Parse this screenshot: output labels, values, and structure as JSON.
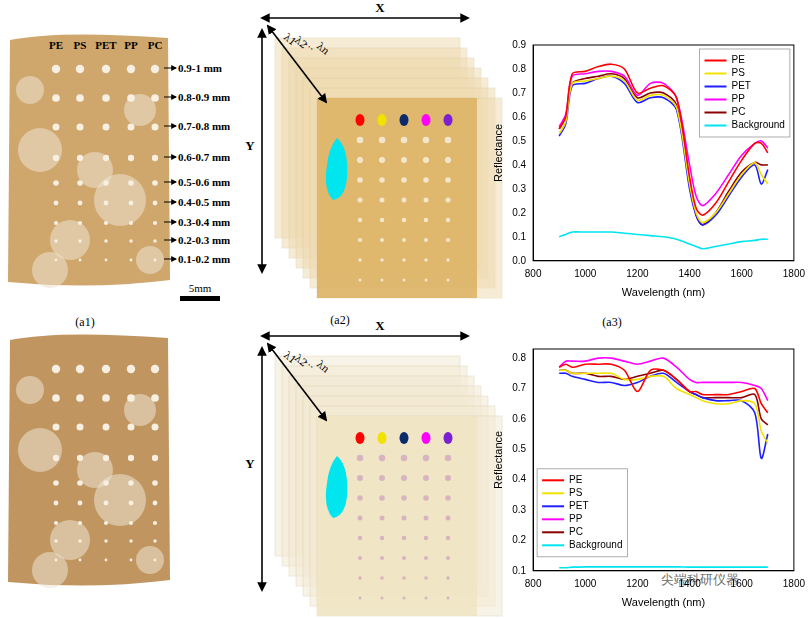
{
  "figure": {
    "column_labels": [
      "PE",
      "PS",
      "PET",
      "PP",
      "PC"
    ],
    "size_labels": [
      "0.9-1 mm",
      "0.8-0.9 mm",
      "0.7-0.8 mm",
      "0.6-0.7 mm",
      "0.5-0.6 mm",
      "0.4-0.5 mm",
      "0.3-0.4 mm",
      "0.2-0.3 mm",
      "0.1-0.2 mm"
    ],
    "scale_bar": "5mm",
    "panel_labels": [
      "(a1)",
      "(a2)",
      "(a3)"
    ],
    "axis_letters": [
      "X",
      "Y"
    ],
    "band_labels": [
      "λ1",
      "λ2",
      "…",
      "λn"
    ],
    "watermark": "尖端科研仪器"
  },
  "chart_data": [
    {
      "type": "line",
      "x_label": "Wavelength (nm)",
      "y_label": "Reflectance",
      "x": [
        900,
        925,
        950,
        1000,
        1050,
        1100,
        1150,
        1200,
        1250,
        1300,
        1350,
        1400,
        1425,
        1450,
        1500,
        1550,
        1600,
        1650,
        1675,
        1700
      ],
      "series": [
        {
          "name": "PE",
          "color": "#ff0000",
          "values": [
            0.55,
            0.6,
            0.78,
            0.79,
            0.81,
            0.82,
            0.8,
            0.7,
            0.72,
            0.73,
            0.68,
            0.35,
            0.22,
            0.19,
            0.24,
            0.33,
            0.42,
            0.49,
            0.49,
            0.45
          ]
        },
        {
          "name": "PS",
          "color": "#f2e200",
          "values": [
            0.53,
            0.58,
            0.74,
            0.75,
            0.76,
            0.77,
            0.75,
            0.67,
            0.69,
            0.69,
            0.64,
            0.32,
            0.2,
            0.16,
            0.2,
            0.28,
            0.36,
            0.41,
            0.36,
            0.32
          ]
        },
        {
          "name": "PET",
          "color": "#1f1fff",
          "values": [
            0.52,
            0.57,
            0.73,
            0.74,
            0.76,
            0.77,
            0.74,
            0.66,
            0.68,
            0.68,
            0.63,
            0.3,
            0.19,
            0.15,
            0.19,
            0.27,
            0.35,
            0.4,
            0.32,
            0.38
          ]
        },
        {
          "name": "PP",
          "color": "#ff00ff",
          "values": [
            0.56,
            0.61,
            0.77,
            0.78,
            0.79,
            0.79,
            0.77,
            0.69,
            0.74,
            0.74,
            0.68,
            0.4,
            0.27,
            0.23,
            0.28,
            0.36,
            0.44,
            0.49,
            0.5,
            0.47
          ]
        },
        {
          "name": "PC",
          "color": "#8b0000",
          "values": [
            0.55,
            0.6,
            0.74,
            0.76,
            0.77,
            0.78,
            0.76,
            0.68,
            0.7,
            0.7,
            0.65,
            0.33,
            0.19,
            0.15,
            0.2,
            0.29,
            0.37,
            0.41,
            0.4,
            0.4
          ]
        },
        {
          "name": "Background",
          "color": "#00e5ee",
          "values": [
            0.1,
            0.11,
            0.12,
            0.12,
            0.12,
            0.12,
            0.115,
            0.11,
            0.105,
            0.1,
            0.09,
            0.07,
            0.06,
            0.05,
            0.06,
            0.07,
            0.08,
            0.085,
            0.09,
            0.09
          ]
        }
      ],
      "xlim": [
        800,
        1800
      ],
      "xticks": [
        800,
        1000,
        1200,
        1400,
        1600,
        1800
      ],
      "ylim": [
        0,
        0.9
      ],
      "yticks": [
        {
          "value": 0,
          "label": "0.0"
        },
        0.1,
        0.2,
        0.3,
        0.4,
        0.5,
        0.6,
        0.7,
        0.8,
        0.9
      ],
      "grid": false,
      "legend": "upper right"
    },
    {
      "type": "line",
      "x_label": "Wavelength (nm)",
      "y_label": "Reflectance",
      "x": [
        900,
        925,
        950,
        1000,
        1050,
        1100,
        1150,
        1200,
        1250,
        1300,
        1350,
        1400,
        1425,
        1450,
        1500,
        1550,
        1600,
        1650,
        1675,
        1700
      ],
      "series": [
        {
          "name": "PE",
          "color": "#ff0000",
          "values": [
            0.77,
            0.78,
            0.77,
            0.78,
            0.78,
            0.78,
            0.76,
            0.69,
            0.76,
            0.76,
            0.73,
            0.69,
            0.69,
            0.68,
            0.68,
            0.68,
            0.69,
            0.7,
            0.65,
            0.62
          ]
        },
        {
          "name": "PS",
          "color": "#f2e200",
          "values": [
            0.76,
            0.76,
            0.75,
            0.75,
            0.75,
            0.75,
            0.73,
            0.73,
            0.74,
            0.74,
            0.7,
            0.68,
            0.67,
            0.66,
            0.65,
            0.65,
            0.66,
            0.65,
            0.56,
            0.52
          ]
        },
        {
          "name": "PET",
          "color": "#1f1fff",
          "values": [
            0.75,
            0.75,
            0.74,
            0.73,
            0.72,
            0.72,
            0.71,
            0.72,
            0.74,
            0.75,
            0.72,
            0.69,
            0.68,
            0.67,
            0.66,
            0.66,
            0.66,
            0.62,
            0.47,
            0.55
          ]
        },
        {
          "name": "PP",
          "color": "#ff00ff",
          "values": [
            0.77,
            0.79,
            0.79,
            0.79,
            0.8,
            0.8,
            0.79,
            0.78,
            0.79,
            0.8,
            0.77,
            0.73,
            0.72,
            0.72,
            0.72,
            0.72,
            0.72,
            0.71,
            0.7,
            0.66
          ]
        },
        {
          "name": "PC",
          "color": "#8b0000",
          "values": [
            0.76,
            0.76,
            0.75,
            0.75,
            0.74,
            0.74,
            0.73,
            0.74,
            0.75,
            0.76,
            0.73,
            0.69,
            0.68,
            0.67,
            0.67,
            0.67,
            0.67,
            0.68,
            0.6,
            0.58
          ]
        },
        {
          "name": "Background",
          "color": "#00e5ee",
          "values": [
            0.11,
            0.11,
            0.112,
            0.113,
            0.113,
            0.113,
            0.113,
            0.113,
            0.113,
            0.113,
            0.113,
            0.112,
            0.112,
            0.112,
            0.112,
            0.112,
            0.112,
            0.112,
            0.112,
            0.112
          ]
        }
      ],
      "xlim": [
        800,
        1800
      ],
      "xticks": [
        800,
        1000,
        1200,
        1400,
        1600,
        1800
      ],
      "ylim": [
        0.1,
        0.83
      ],
      "yticks": [
        0.1,
        0.2,
        0.3,
        0.4,
        0.5,
        0.6,
        0.7,
        0.8
      ],
      "grid": false,
      "legend": "lower left"
    }
  ]
}
